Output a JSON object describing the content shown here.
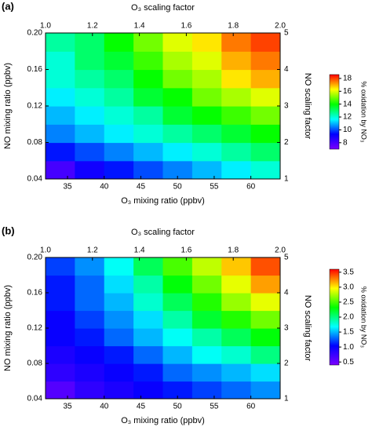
{
  "chart_data": [
    {
      "type": "heatmap",
      "label": "(a)",
      "xlabel": "O₃ mixing ratio (ppbv)",
      "x2label": "O₃ scaling factor",
      "ylabel": "NO mixing ratio (ppbv)",
      "y2label": "NO scaling factor",
      "clabel": "% oxidation by NO₃",
      "x": [
        34,
        38,
        42,
        46,
        50,
        54,
        58,
        62
      ],
      "y": [
        0.05,
        0.07,
        0.09,
        0.11,
        0.13,
        0.15,
        0.17,
        0.19
      ],
      "z": [
        [
          8,
          9,
          9.5,
          10,
          10.5,
          11,
          11.5,
          12
        ],
        [
          9.5,
          10,
          10.5,
          11,
          11.5,
          12,
          12.5,
          13
        ],
        [
          10.5,
          11,
          11.5,
          12,
          12.5,
          13,
          13.5,
          14
        ],
        [
          11,
          11.5,
          12,
          12.5,
          13.5,
          14,
          14.5,
          15
        ],
        [
          11.5,
          12,
          12.5,
          13.5,
          14,
          15,
          15.5,
          16
        ],
        [
          12,
          12.5,
          13,
          14,
          15,
          15.5,
          16.5,
          17
        ],
        [
          12,
          13,
          13.5,
          14.5,
          15.5,
          16,
          17,
          17.5
        ],
        [
          12.5,
          13,
          14,
          15,
          16,
          16.5,
          17.5,
          18
        ]
      ],
      "xlim": [
        32,
        64
      ],
      "xticks": [
        35,
        40,
        45,
        50,
        55,
        60
      ],
      "x2lim": [
        1,
        2
      ],
      "x2ticks": [
        {
          "value": 1,
          "label": "1.0"
        },
        1.2,
        1.4,
        1.6,
        1.8,
        {
          "value": 2,
          "label": "2.0"
        }
      ],
      "ylim": [
        0.04,
        0.2
      ],
      "yticks": [
        0.04,
        0.08,
        0.12,
        0.16,
        {
          "value": 0.2,
          "label": "0.20"
        }
      ],
      "y2lim": [
        1,
        5
      ],
      "y2ticks": [
        1,
        2,
        3,
        4,
        5
      ],
      "clim": [
        7,
        18.6
      ],
      "cticks": [
        8,
        10,
        12,
        14,
        16,
        18
      ],
      "colormap": [
        "#7a00ff",
        "#0000ff",
        "#00ffff",
        "#00ff00",
        "#ffff00",
        "#ff0000"
      ]
    },
    {
      "type": "heatmap",
      "label": "(b)",
      "xlabel": "O₃ mixing ratio (ppbv)",
      "x2label": "O₃ scaling factor",
      "ylabel": "NO mixing ratio (ppbv)",
      "y2label": "NO scaling factor",
      "clabel": "% oxidation by NO₃",
      "x": [
        34,
        38,
        42,
        46,
        50,
        54,
        58,
        62
      ],
      "y": [
        0.05,
        0.07,
        0.09,
        0.11,
        0.13,
        0.15,
        0.17,
        0.19
      ],
      "z": [
        [
          0.6,
          0.8,
          0.9,
          1.0,
          1.1,
          1.2,
          1.3,
          1.4
        ],
        [
          0.8,
          0.9,
          1.0,
          1.1,
          1.3,
          1.4,
          1.5,
          1.6
        ],
        [
          0.9,
          1.0,
          1.1,
          1.3,
          1.5,
          1.7,
          1.8,
          2.0
        ],
        [
          1.0,
          1.1,
          1.3,
          1.5,
          1.7,
          1.9,
          2.1,
          2.3
        ],
        [
          1.0,
          1.2,
          1.4,
          1.6,
          1.9,
          2.2,
          2.4,
          2.6
        ],
        [
          1.1,
          1.3,
          1.5,
          1.8,
          2.1,
          2.4,
          2.7,
          2.9
        ],
        [
          1.1,
          1.3,
          1.6,
          1.9,
          2.3,
          2.6,
          2.9,
          3.2
        ],
        [
          1.2,
          1.4,
          1.7,
          2.1,
          2.5,
          2.8,
          3.1,
          3.4
        ]
      ],
      "xlim": [
        32,
        64
      ],
      "xticks": [
        35,
        40,
        45,
        50,
        55,
        60
      ],
      "x2lim": [
        1,
        2
      ],
      "x2ticks": [
        {
          "value": 1,
          "label": "1.0"
        },
        1.2,
        1.4,
        1.6,
        1.8,
        {
          "value": 2,
          "label": "2.0"
        }
      ],
      "ylim": [
        0.04,
        0.2
      ],
      "yticks": [
        0.04,
        0.08,
        0.12,
        0.16,
        {
          "value": 0.2,
          "label": "0.20"
        }
      ],
      "y2lim": [
        1,
        5
      ],
      "y2ticks": [
        1,
        2,
        3,
        4,
        5
      ],
      "clim": [
        0.4,
        3.6
      ],
      "cticks": [
        0.5,
        {
          "value": 1,
          "label": "1.0"
        },
        1.5,
        {
          "value": 2,
          "label": "2.0"
        },
        2.5,
        {
          "value": 3,
          "label": "3.0"
        },
        3.5
      ],
      "colormap": [
        "#7a00ff",
        "#0000ff",
        "#00ffff",
        "#00ff00",
        "#ffff00",
        "#ff0000"
      ]
    }
  ]
}
